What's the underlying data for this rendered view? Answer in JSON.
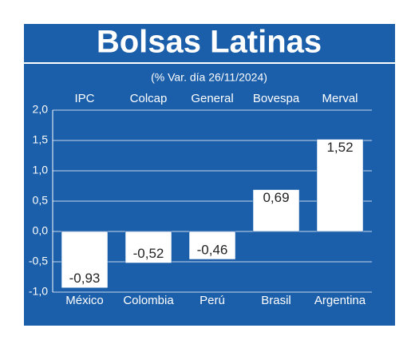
{
  "chart_data": {
    "type": "bar",
    "title": "Bolsas Latinas",
    "subtitle": "(% Var. día 26/11/2024)",
    "index_names": [
      "IPC",
      "Colcap",
      "General",
      "Bovespa",
      "Merval"
    ],
    "categories": [
      "México",
      "Colombia",
      "Perú",
      "Brasil",
      "Argentina"
    ],
    "values": [
      -0.93,
      -0.52,
      -0.46,
      0.69,
      1.52
    ],
    "value_labels": [
      "-0,93",
      "-0,52",
      "-0,46",
      "0,69",
      "1,52"
    ],
    "color": "#ffffff",
    "ylim": [
      -1,
      2
    ],
    "yticks": [
      {
        "value": 2,
        "label": "2,0"
      },
      {
        "value": 1.5,
        "label": "1,5"
      },
      {
        "value": 1,
        "label": "1,0"
      },
      {
        "value": 0.5,
        "label": "0,5"
      },
      {
        "value": 0,
        "label": "0,0"
      },
      {
        "value": -0.5,
        "label": "-0,5"
      },
      {
        "value": -1,
        "label": "-1,0"
      }
    ],
    "grid": true
  }
}
